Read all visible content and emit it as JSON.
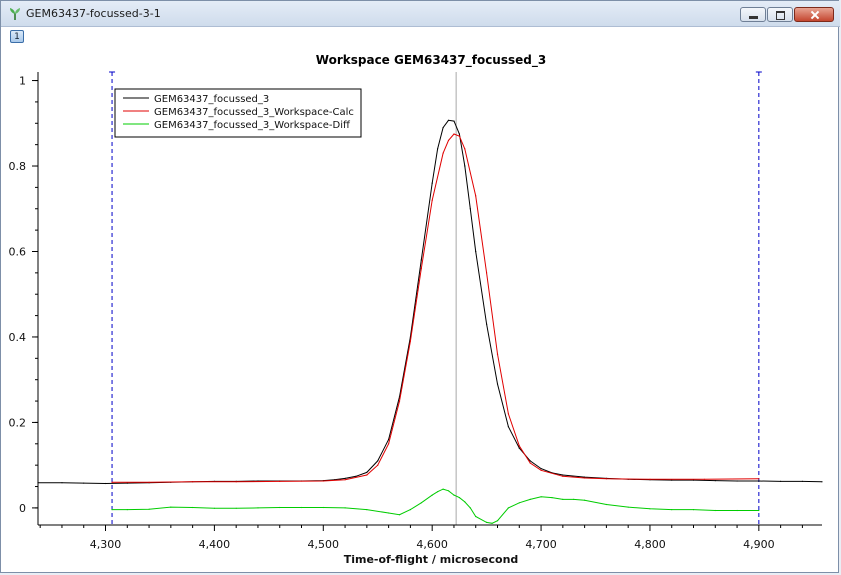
{
  "window": {
    "title": "GEM63437-focussed-3-1",
    "layer_label": "1"
  },
  "colors": {
    "data": "#000000",
    "calc": "#e00000",
    "diff": "#00cc00",
    "range": "#0000c8",
    "peak_line": "#a8a8a8"
  },
  "chart_data": {
    "type": "line",
    "title": "Workspace GEM63437_focussed_3",
    "xlabel": "Time-of-flight / microsecond",
    "ylabel": "",
    "xlim": [
      4238,
      4958
    ],
    "ylim": [
      -0.04,
      1.02
    ],
    "x_ticks": [
      4300,
      4400,
      4500,
      4600,
      4700,
      4800,
      4900
    ],
    "x_tick_labels": [
      "4,300",
      "4,400",
      "4,500",
      "4,600",
      "4,700",
      "4,800",
      "4,900"
    ],
    "y_ticks": [
      0,
      0.2,
      0.4,
      0.6,
      0.8,
      1
    ],
    "y_tick_labels": [
      "0",
      "0.2",
      "0.4",
      "0.6",
      "0.8",
      "1"
    ],
    "legend_position": "top-left",
    "range_markers": [
      4306,
      4900
    ],
    "peak_marker": 4622,
    "series": [
      {
        "name": "GEM63437_focussed_3",
        "color": "#000000",
        "x": [
          4238,
          4260,
          4280,
          4300,
          4320,
          4340,
          4360,
          4380,
          4400,
          4420,
          4440,
          4460,
          4480,
          4500,
          4510,
          4520,
          4530,
          4540,
          4550,
          4560,
          4570,
          4580,
          4590,
          4600,
          4605,
          4610,
          4615,
          4620,
          4625,
          4630,
          4635,
          4640,
          4650,
          4660,
          4670,
          4680,
          4690,
          4700,
          4710,
          4720,
          4740,
          4760,
          4780,
          4800,
          4820,
          4840,
          4860,
          4880,
          4900,
          4920,
          4940,
          4958
        ],
        "y": [
          0.059,
          0.059,
          0.058,
          0.057,
          0.058,
          0.059,
          0.06,
          0.061,
          0.062,
          0.062,
          0.063,
          0.063,
          0.063,
          0.064,
          0.066,
          0.069,
          0.074,
          0.083,
          0.11,
          0.16,
          0.26,
          0.4,
          0.58,
          0.76,
          0.84,
          0.89,
          0.907,
          0.905,
          0.875,
          0.8,
          0.7,
          0.6,
          0.43,
          0.29,
          0.19,
          0.14,
          0.11,
          0.092,
          0.082,
          0.077,
          0.072,
          0.069,
          0.067,
          0.066,
          0.065,
          0.065,
          0.064,
          0.063,
          0.063,
          0.062,
          0.062,
          0.061
        ]
      },
      {
        "name": "GEM63437_focussed_3_Workspace-Calc",
        "color": "#e00000",
        "x": [
          4306,
          4340,
          4380,
          4420,
          4460,
          4500,
          4520,
          4540,
          4550,
          4560,
          4570,
          4580,
          4590,
          4600,
          4610,
          4615,
          4620,
          4625,
          4630,
          4640,
          4650,
          4660,
          4670,
          4680,
          4690,
          4700,
          4720,
          4740,
          4760,
          4800,
          4850,
          4900
        ],
        "y": [
          0.06,
          0.06,
          0.061,
          0.061,
          0.062,
          0.063,
          0.066,
          0.077,
          0.1,
          0.15,
          0.25,
          0.39,
          0.56,
          0.72,
          0.83,
          0.86,
          0.875,
          0.87,
          0.84,
          0.73,
          0.55,
          0.36,
          0.22,
          0.145,
          0.105,
          0.088,
          0.074,
          0.07,
          0.068,
          0.067,
          0.067,
          0.068
        ]
      },
      {
        "name": "GEM63437_focussed_3_Workspace-Diff",
        "color": "#00cc00",
        "x": [
          4306,
          4320,
          4340,
          4360,
          4380,
          4400,
          4420,
          4440,
          4460,
          4480,
          4500,
          4520,
          4540,
          4560,
          4570,
          4580,
          4590,
          4600,
          4605,
          4610,
          4615,
          4620,
          4625,
          4630,
          4635,
          4640,
          4650,
          4655,
          4660,
          4670,
          4680,
          4690,
          4700,
          4710,
          4720,
          4730,
          4740,
          4760,
          4780,
          4800,
          4820,
          4840,
          4860,
          4880,
          4900
        ],
        "y": [
          -0.004,
          -0.004,
          -0.003,
          0.002,
          0.001,
          -0.001,
          -0.001,
          0.0,
          0.001,
          0.001,
          0.001,
          0.0,
          -0.004,
          -0.012,
          -0.016,
          -0.004,
          0.012,
          0.03,
          0.038,
          0.044,
          0.04,
          0.03,
          0.024,
          0.014,
          0.0,
          -0.02,
          -0.034,
          -0.036,
          -0.03,
          0.0,
          0.012,
          0.02,
          0.026,
          0.024,
          0.02,
          0.02,
          0.018,
          0.008,
          0.002,
          -0.002,
          -0.004,
          -0.004,
          -0.006,
          -0.006,
          -0.006
        ]
      }
    ]
  }
}
